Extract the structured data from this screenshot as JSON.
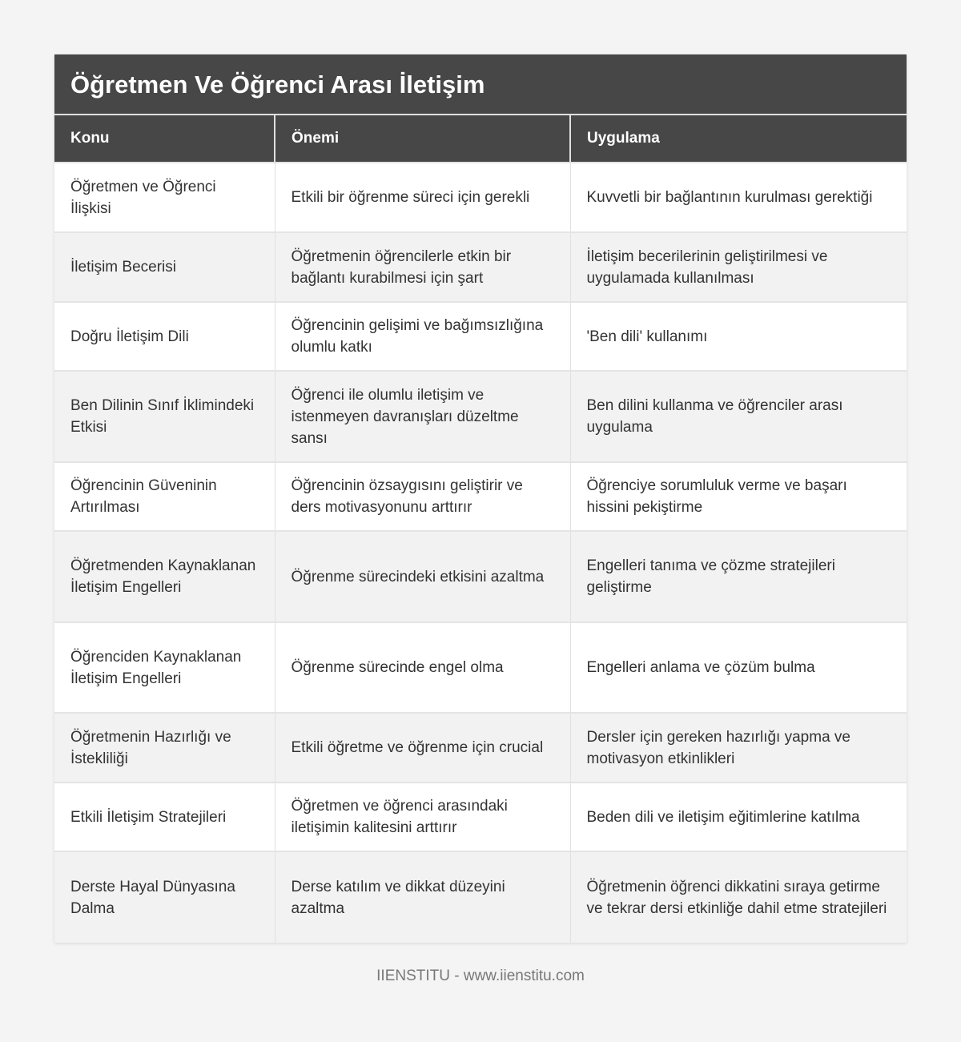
{
  "title": "Öğretmen Ve Öğrenci Arası İletişim",
  "columns": [
    "Konu",
    "Önemi",
    "Uygulama"
  ],
  "rows": [
    [
      "Öğretmen ve Öğrenci İlişkisi",
      "Etkili bir öğrenme süreci için gerekli",
      "Kuvvetli bir bağlantının kurulması gerektiği"
    ],
    [
      "İletişim Becerisi",
      "Öğretmenin öğrencilerle etkin bir bağlantı kurabilmesi için şart",
      "İletişim becerilerinin geliştirilmesi ve uygulamada kullanılması"
    ],
    [
      "Doğru İletişim Dili",
      "Öğrencinin gelişimi ve bağımsızlığına olumlu katkı",
      "'Ben dili' kullanımı"
    ],
    [
      "Ben Dilinin Sınıf İklimindeki Etkisi",
      "Öğrenci ile olumlu iletişim ve istenmeyen davranışları düzeltme sansı",
      "Ben dilini kullanma ve öğrenciler arası uygulama"
    ],
    [
      "Öğrencinin Güveninin Artırılması",
      "Öğrencinin özsaygısını geliştirir ve ders motivasyonunu arttırır",
      "Öğrenciye sorumluluk verme ve başarı hissini pekiştirme"
    ],
    [
      "Öğretmenden Kaynaklanan İletişim Engelleri",
      "Öğrenme sürecindeki etkisini azaltma",
      "Engelleri tanıma ve çözme stratejileri geliştirme"
    ],
    [
      "Öğrenciden Kaynaklanan İletişim Engelleri",
      "Öğrenme sürecinde engel olma",
      "Engelleri anlama ve çözüm bulma"
    ],
    [
      "Öğretmenin Hazırlığı ve İstekliliği",
      "Etkili öğretme ve öğrenme için crucial",
      "Dersler için gereken hazırlığı yapma ve motivasyon etkinlikleri"
    ],
    [
      "Etkili İletişim Stratejileri",
      "Öğretmen ve öğrenci arasındaki iletişimin kalitesini arttırır",
      "Beden dili ve iletişim eğitimlerine katılma"
    ],
    [
      "Derste Hayal Dünyasına Dalma",
      "Derse katılım ve dikkat düzeyini azaltma",
      "Öğretmenin öğrenci dikkatini sıraya getirme ve tekrar dersi etkinliğe dahil etme stratejileri"
    ]
  ],
  "footer": "IIENSTITU - www.iienstitu.com",
  "colors": {
    "header_bg": "#474747",
    "even_row_bg": "#f2f2f2",
    "page_bg": "#f4f4f4"
  }
}
